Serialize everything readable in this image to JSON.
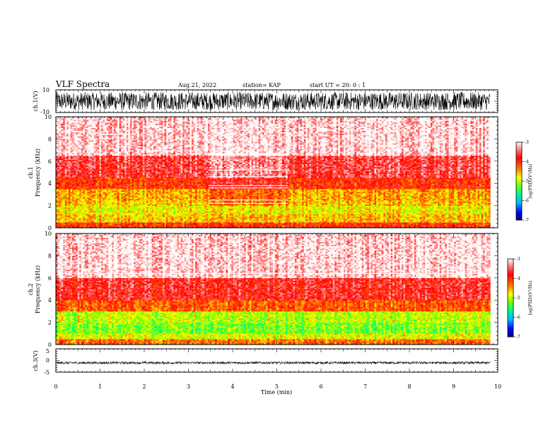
{
  "header": {
    "title": "VLF Spectra",
    "date": "Aug.21, 2022",
    "station": "station= KAP",
    "start": "start  UT =   20: 0  : 1"
  },
  "colors": {
    "spectrogram_scale": [
      "#00007f",
      "#0000ff",
      "#00bfff",
      "#00ff7f",
      "#7fff00",
      "#ffff00",
      "#ff7f00",
      "#ff0000",
      "#ffffff"
    ],
    "waveform": "#000000"
  },
  "chart_data": [
    {
      "id": "ch1_waveform",
      "type": "line",
      "ylabel": "ch.1(V)",
      "yticks": [
        "10",
        "-10"
      ],
      "ylim": [
        -10,
        10
      ],
      "xlim": [
        0,
        10
      ],
      "data_extent_min": 9.83,
      "envelope": [
        -8,
        8
      ],
      "description": "dense noisy waveform filling most of the range"
    },
    {
      "id": "ch1_spectrogram",
      "type": "heatmap",
      "ylabel": "Frequency (kHz)",
      "ylabel_prefix": "ch.1",
      "yticks": [
        "0",
        "2",
        "4",
        "6",
        "8",
        "10"
      ],
      "ylim": [
        0,
        10
      ],
      "xlim": [
        0,
        10
      ],
      "data_extent_min": 9.83,
      "colorbar": {
        "label": "log(PSD)(V²/Hz)",
        "ticks": [
          "-3",
          "-4",
          "-5",
          "-6",
          "-7"
        ],
        "range": [
          -7,
          -3
        ]
      },
      "bands_khz": [
        {
          "from": 0.0,
          "to": 0.5,
          "level": -4.0
        },
        {
          "from": 0.5,
          "to": 1.2,
          "level": -4.6
        },
        {
          "from": 1.2,
          "to": 2.0,
          "level": -4.8
        },
        {
          "from": 2.0,
          "to": 2.5,
          "level": -4.6
        },
        {
          "from": 2.5,
          "to": 3.5,
          "level": -4.5
        },
        {
          "from": 3.5,
          "to": 4.5,
          "level": -4.0
        },
        {
          "from": 4.5,
          "to": 6.5,
          "level": -3.6
        },
        {
          "from": 6.5,
          "to": 10.0,
          "level": -3.1
        }
      ],
      "notched_interval_min": [
        3.45,
        5.25
      ],
      "notch_lines_khz": [
        2.2,
        2.5,
        3.6,
        3.8,
        4.6,
        5.2,
        6.6
      ]
    },
    {
      "id": "ch2_spectrogram",
      "type": "heatmap",
      "ylabel": "Frequency (kHz)",
      "ylabel_prefix": "ch.2",
      "yticks": [
        "0",
        "2",
        "4",
        "6",
        "8",
        "10"
      ],
      "ylim": [
        0,
        10
      ],
      "xlim": [
        0,
        10
      ],
      "data_extent_min": 9.83,
      "colorbar": {
        "label": "log(PSD)(V²/Hz)",
        "ticks": [
          "-3",
          "-4",
          "-5",
          "-6",
          "-7"
        ],
        "range": [
          -7,
          -3
        ]
      },
      "bands_khz": [
        {
          "from": 0.0,
          "to": 0.5,
          "level": -4.3
        },
        {
          "from": 0.5,
          "to": 1.0,
          "level": -4.9
        },
        {
          "from": 1.0,
          "to": 2.0,
          "level": -5.2
        },
        {
          "from": 2.0,
          "to": 3.0,
          "level": -5.0
        },
        {
          "from": 3.0,
          "to": 4.0,
          "level": -4.2
        },
        {
          "from": 4.0,
          "to": 6.0,
          "level": -3.7
        },
        {
          "from": 6.0,
          "to": 10.0,
          "level": -3.1
        }
      ],
      "notch_lines_khz": [
        6.4
      ]
    },
    {
      "id": "ch3_waveform",
      "type": "line",
      "ylabel": "ch.3(V)",
      "yticks": [
        "5",
        "0",
        "-5"
      ],
      "ylim": [
        -5,
        5
      ],
      "xlim": [
        0,
        10
      ],
      "data_extent_min": 9.83,
      "envelope": [
        -1.5,
        -0.5
      ],
      "description": "narrow dense band near -1 V"
    }
  ],
  "xaxis": {
    "label": "Time (min)",
    "ticks": [
      "0",
      "1",
      "2",
      "3",
      "4",
      "5",
      "6",
      "7",
      "8",
      "9",
      "10"
    ],
    "range": [
      0,
      10
    ]
  }
}
